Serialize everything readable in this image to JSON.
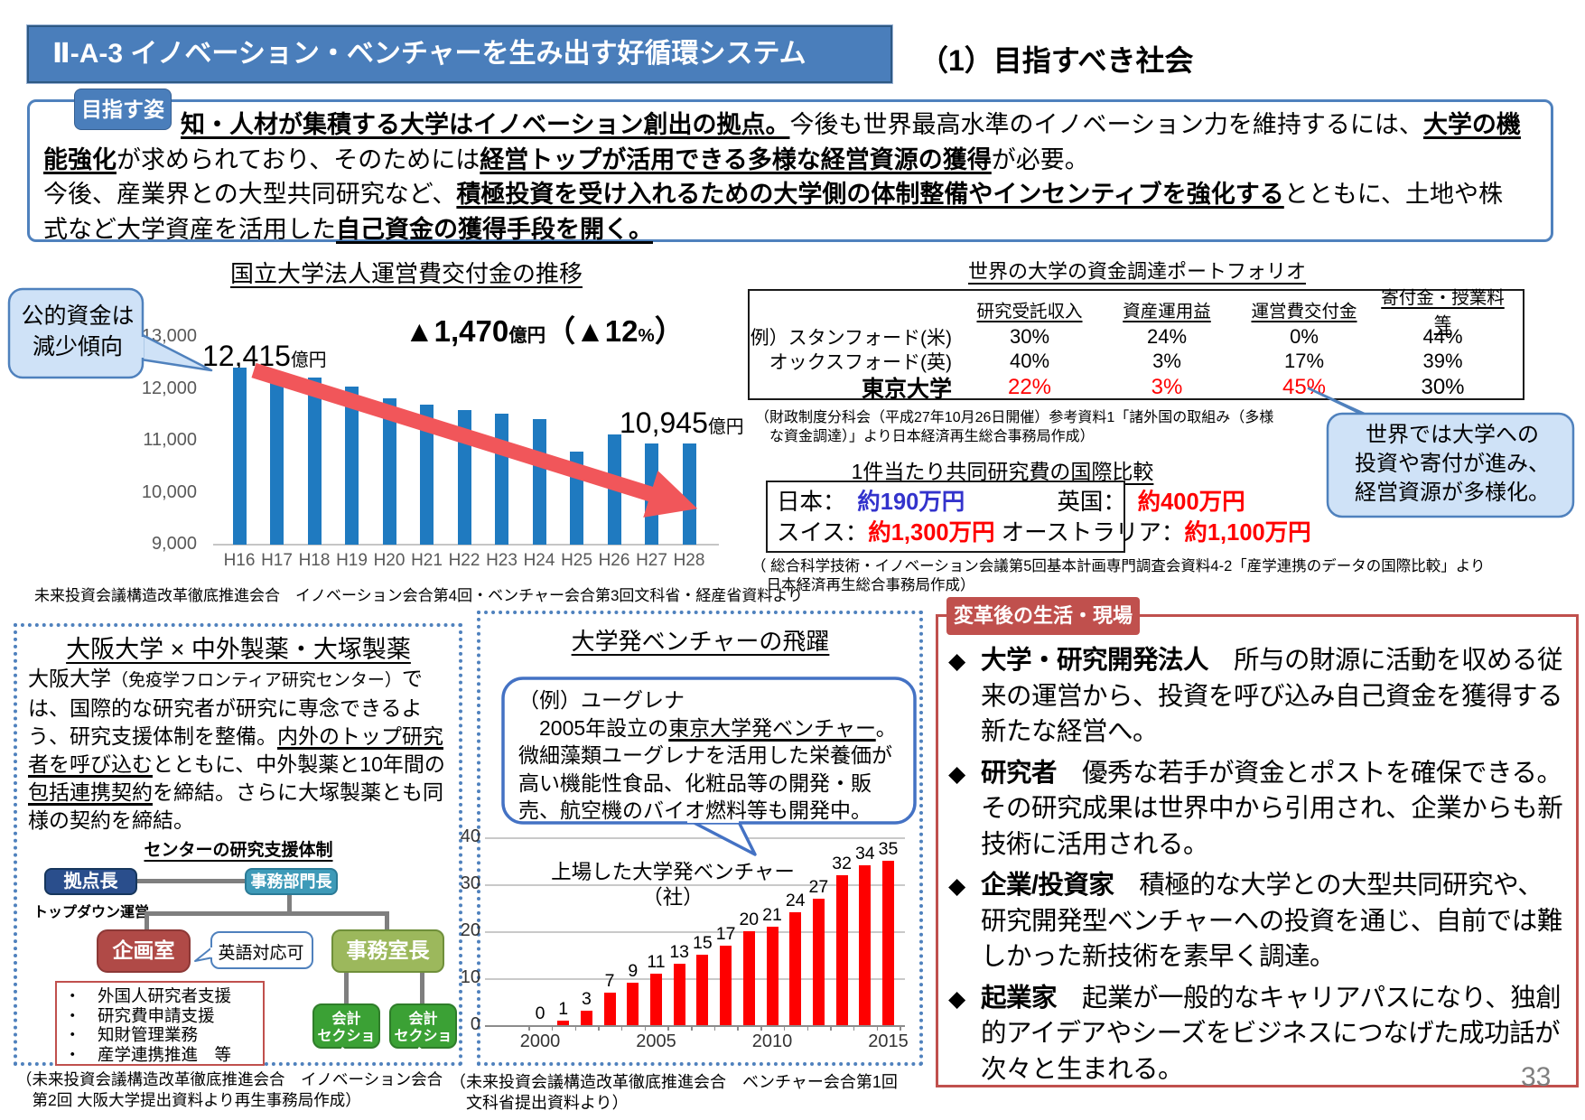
{
  "page": {
    "number": "33"
  },
  "header": {
    "code_title": "Ⅱ-A-3 イノベーション・ベンチャーを生み出す好循環システム",
    "section_title": "（1）目指すべき社会"
  },
  "goal_box": {
    "tab": "目指す姿",
    "p1": [
      {
        "t": "知・人材が集積する大学はイノベーション創出の拠点。",
        "b": 1,
        "u": 1
      },
      {
        "t": "今後も世界最高水準のイノベーション力を維持するには、"
      },
      {
        "t": "大学の機能強化",
        "b": 1,
        "u": 1
      },
      {
        "t": "が求められており、そのためには"
      },
      {
        "t": "経営トップが活用できる多様な経営資源の獲得",
        "b": 1,
        "u": 1
      },
      {
        "t": "が必要。"
      }
    ],
    "p2": [
      {
        "t": "今後、産業界との大型共同研究など、"
      },
      {
        "t": "積極投資を受け入れるための大学側の体制整備やインセンティブを強化する",
        "b": 1,
        "u": 1
      },
      {
        "t": "とともに、土地や株式など大学資産を活用した"
      },
      {
        "t": "自己資金の獲得手段を開く。",
        "b": 1,
        "u": 1
      }
    ]
  },
  "chart_data": [
    {
      "type": "bar",
      "title": "国立大学法人運営費交付金の推移",
      "categories": [
        "H16",
        "H17",
        "H18",
        "H19",
        "H20",
        "H21",
        "H22",
        "H23",
        "H24",
        "H25",
        "H26",
        "H27",
        "H28"
      ],
      "values": [
        12415,
        12317,
        12214,
        12043,
        11813,
        11695,
        11585,
        11528,
        11423,
        10792,
        11123,
        10945,
        10945
      ],
      "unit": "億円",
      "ylim": [
        9000,
        13000
      ],
      "yticks": [
        9000,
        10000,
        11000,
        12000,
        13000
      ],
      "grid": false,
      "bar_color": "#1f7ac0",
      "source": "未来投資会議構造改革徹底推進会合　イノベーション会合第4回・ベンチャー会合第3回文科省・経産省資料より"
    },
    {
      "type": "bar",
      "title": "上場した大学発ベンチャー（社）",
      "x": [
        2000,
        2001,
        2002,
        2003,
        2004,
        2005,
        2006,
        2007,
        2008,
        2009,
        2010,
        2011,
        2012,
        2013,
        2014,
        2015
      ],
      "values": [
        0,
        1,
        3,
        7,
        9,
        11,
        13,
        15,
        17,
        20,
        21,
        24,
        27,
        32,
        34,
        35
      ],
      "ylim": [
        0,
        40
      ],
      "yticks": [
        0,
        10,
        20,
        30,
        40
      ],
      "xticks": [
        2000,
        2005,
        2010,
        2015
      ],
      "grid": true,
      "data_labels": true,
      "bar_color": "#fe0000"
    }
  ],
  "funding_chart": {
    "delta_rich": [
      {
        "t": "▲1,470",
        "b": 1
      },
      {
        "t": "億円",
        "b": 1,
        "small": 1
      },
      {
        "t": "（▲12",
        "b": 1
      },
      {
        "t": "%",
        "b": 1,
        "small": 1
      },
      {
        "t": "）",
        "b": 1
      }
    ],
    "start_label": [
      {
        "t": "12,415"
      },
      {
        "t": "億円",
        "small": 1
      }
    ],
    "end_label": [
      {
        "t": "10,945"
      },
      {
        "t": "億円",
        "small": 1
      }
    ]
  },
  "public_callout": {
    "text": "公的資金は\n減少傾向"
  },
  "portfolio_table": {
    "title": "世界の大学の資金調達ポートフォリオ",
    "columns": [
      "研究受託収入",
      "資産運用益",
      "運営費交付金",
      "寄付金・授業料等"
    ],
    "rows": [
      {
        "label": "例）スタンフォード(米)",
        "big": false,
        "values": [
          {
            "v": "30%"
          },
          {
            "v": "24%"
          },
          {
            "v": "0%"
          },
          {
            "v": "44%"
          }
        ]
      },
      {
        "label": "オックスフォード(英)",
        "big": false,
        "values": [
          {
            "v": "40%"
          },
          {
            "v": "3%"
          },
          {
            "v": "17%"
          },
          {
            "v": "39%"
          }
        ]
      },
      {
        "label": "東京大学",
        "big": true,
        "values": [
          {
            "v": "22%",
            "red": true
          },
          {
            "v": "3%",
            "red": true
          },
          {
            "v": "45%",
            "red": true
          },
          {
            "v": "30%"
          }
        ]
      }
    ],
    "source": "（財政制度分科会（平成27年10月26日開催）参考資料1「諸外国の取組み（多様\n　な資金調達）」より日本経済再生総合事務局作成）"
  },
  "joint_research": {
    "title": "1件当たり共同研究費の国際比較",
    "line1": [
      {
        "t": "日本：　"
      },
      {
        "t": "約190万円",
        "b": 1,
        "c": "#3333cc"
      },
      {
        "t": "　　　　英国：　"
      },
      {
        "t": "約400万円",
        "b": 1,
        "c": "#ff0000"
      }
    ],
    "line2": [
      {
        "t": "スイス："
      },
      {
        "t": "約1,300万円",
        "b": 1,
        "c": "#ff0000"
      },
      {
        "t": " オーストラリア："
      },
      {
        "t": "約1,100万円",
        "b": 1,
        "c": "#ff0000"
      }
    ],
    "source": "（ 総合科学技術・イノベーション会議第5回基本計画専門調査会資料4-2「産学連携のデータの国際比較」より\n　日本経済再生総合事務局作成）"
  },
  "world_callout": {
    "text": "世界では大学への\n投資や寄付が進み、\n経営資源が多様化。"
  },
  "osaka_box": {
    "title": "大阪大学 × 中外製薬・大塚製薬",
    "body": [
      {
        "t": "大阪大学"
      },
      {
        "t": "（免疫学フロンティア研究センター）",
        "small_custom": 1
      },
      {
        "t": "では、国際的な研究者が研究に専念できるよう、研究支援体制を整備。"
      },
      {
        "t": "内外のトップ研究者を呼び込む",
        "u": 1
      },
      {
        "t": "とともに、中外製薬と10年間の"
      },
      {
        "t": "包括連携契約",
        "u": 1
      },
      {
        "t": "を締結。さらに大塚製薬とも同様の契約を締結。"
      }
    ],
    "org_title": "センターの研究支援体制",
    "org": {
      "kyoten": "拠点長",
      "bumon": "事務部門長",
      "topdown": "トップダウン運営",
      "kikaku": "企画室",
      "eigo": "英語対応可",
      "shitsu": "事務室長",
      "kaikei": "会計\nセクション"
    },
    "supports": [
      "外国人研究者支援",
      "研究費申請支援",
      "知財管理業務",
      "産学連携推進　等"
    ],
    "source": "（未来投資会議構造改革徹底推進会合　イノベーション会合\n　第2回 大阪大学提出資料より再生事務局作成）"
  },
  "venture_box": {
    "title": "大学発ベンチャーの飛躍",
    "bubble": [
      {
        "t": "（例）ユーグレナ\n　2005年設立の"
      },
      {
        "t": "東京大学発ベンチャー",
        "u": 1
      },
      {
        "t": "。\n微細藻類ユーグレナを活用した栄養価が高い機能性食品、化粧品等の開発・販売、航空機のバイオ燃料等も開発中。"
      }
    ],
    "chart_label": "上場した大学発ベンチャー\n（社）",
    "source": "（未来投資会議構造改革徹底推進会合　ベンチャー会合第1回\n　文科省提出資料より）"
  },
  "after_box": {
    "tab": "変革後の生活・現場",
    "items": [
      {
        "title": "大学・研究開発法人",
        "text": "　所与の財源に活動を収める従来の運営から、投資を呼び込み自己資金を獲得する新たな経営へ。"
      },
      {
        "title": "研究者",
        "text": "　優秀な若手が資金とポストを確保できる。その研究成果は世界中から引用され、企業からも新技術に活用される。"
      },
      {
        "title": "企業/投資家",
        "text": "　積極的な大学との大型共同研究や、研究開発型ベンチャーへの投資を通じ、自前では難しかった新技術を素早く調達。"
      },
      {
        "title": "起業家",
        "text": "　起業が一般的なキャリアパスになり、独創的アイデアやシーズをビジネスにつなげた成功話が次々と生まれる。"
      }
    ]
  }
}
